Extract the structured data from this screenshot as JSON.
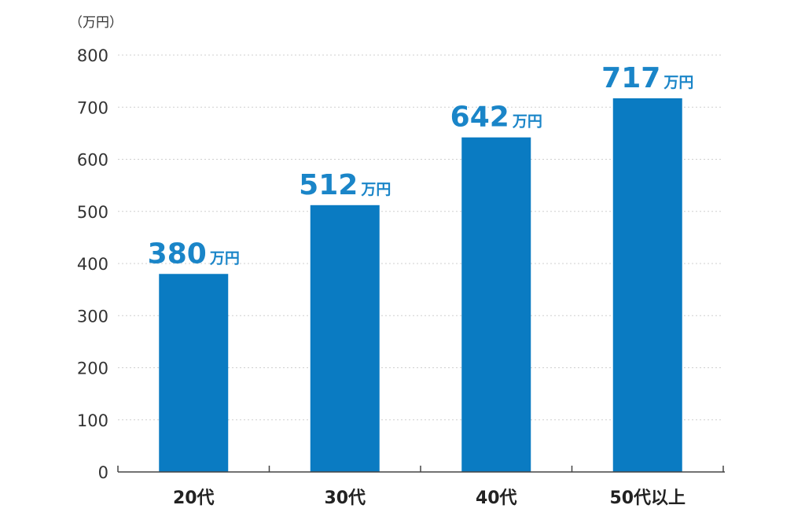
{
  "chart_data": {
    "type": "bar",
    "y_unit_label": "（万円）",
    "categories": [
      "20代",
      "30代",
      "40代",
      "50代以上"
    ],
    "values": [
      380,
      512,
      642,
      717
    ],
    "value_labels": [
      "380",
      "512",
      "642",
      "717"
    ],
    "value_unit": "万円",
    "yticks": [
      "0",
      "100",
      "200",
      "300",
      "400",
      "500",
      "600",
      "700",
      "800"
    ],
    "ylim": [
      0,
      800
    ],
    "grid": true,
    "bar_color": "#0a7bc2",
    "label_color": "#1a85c8"
  }
}
